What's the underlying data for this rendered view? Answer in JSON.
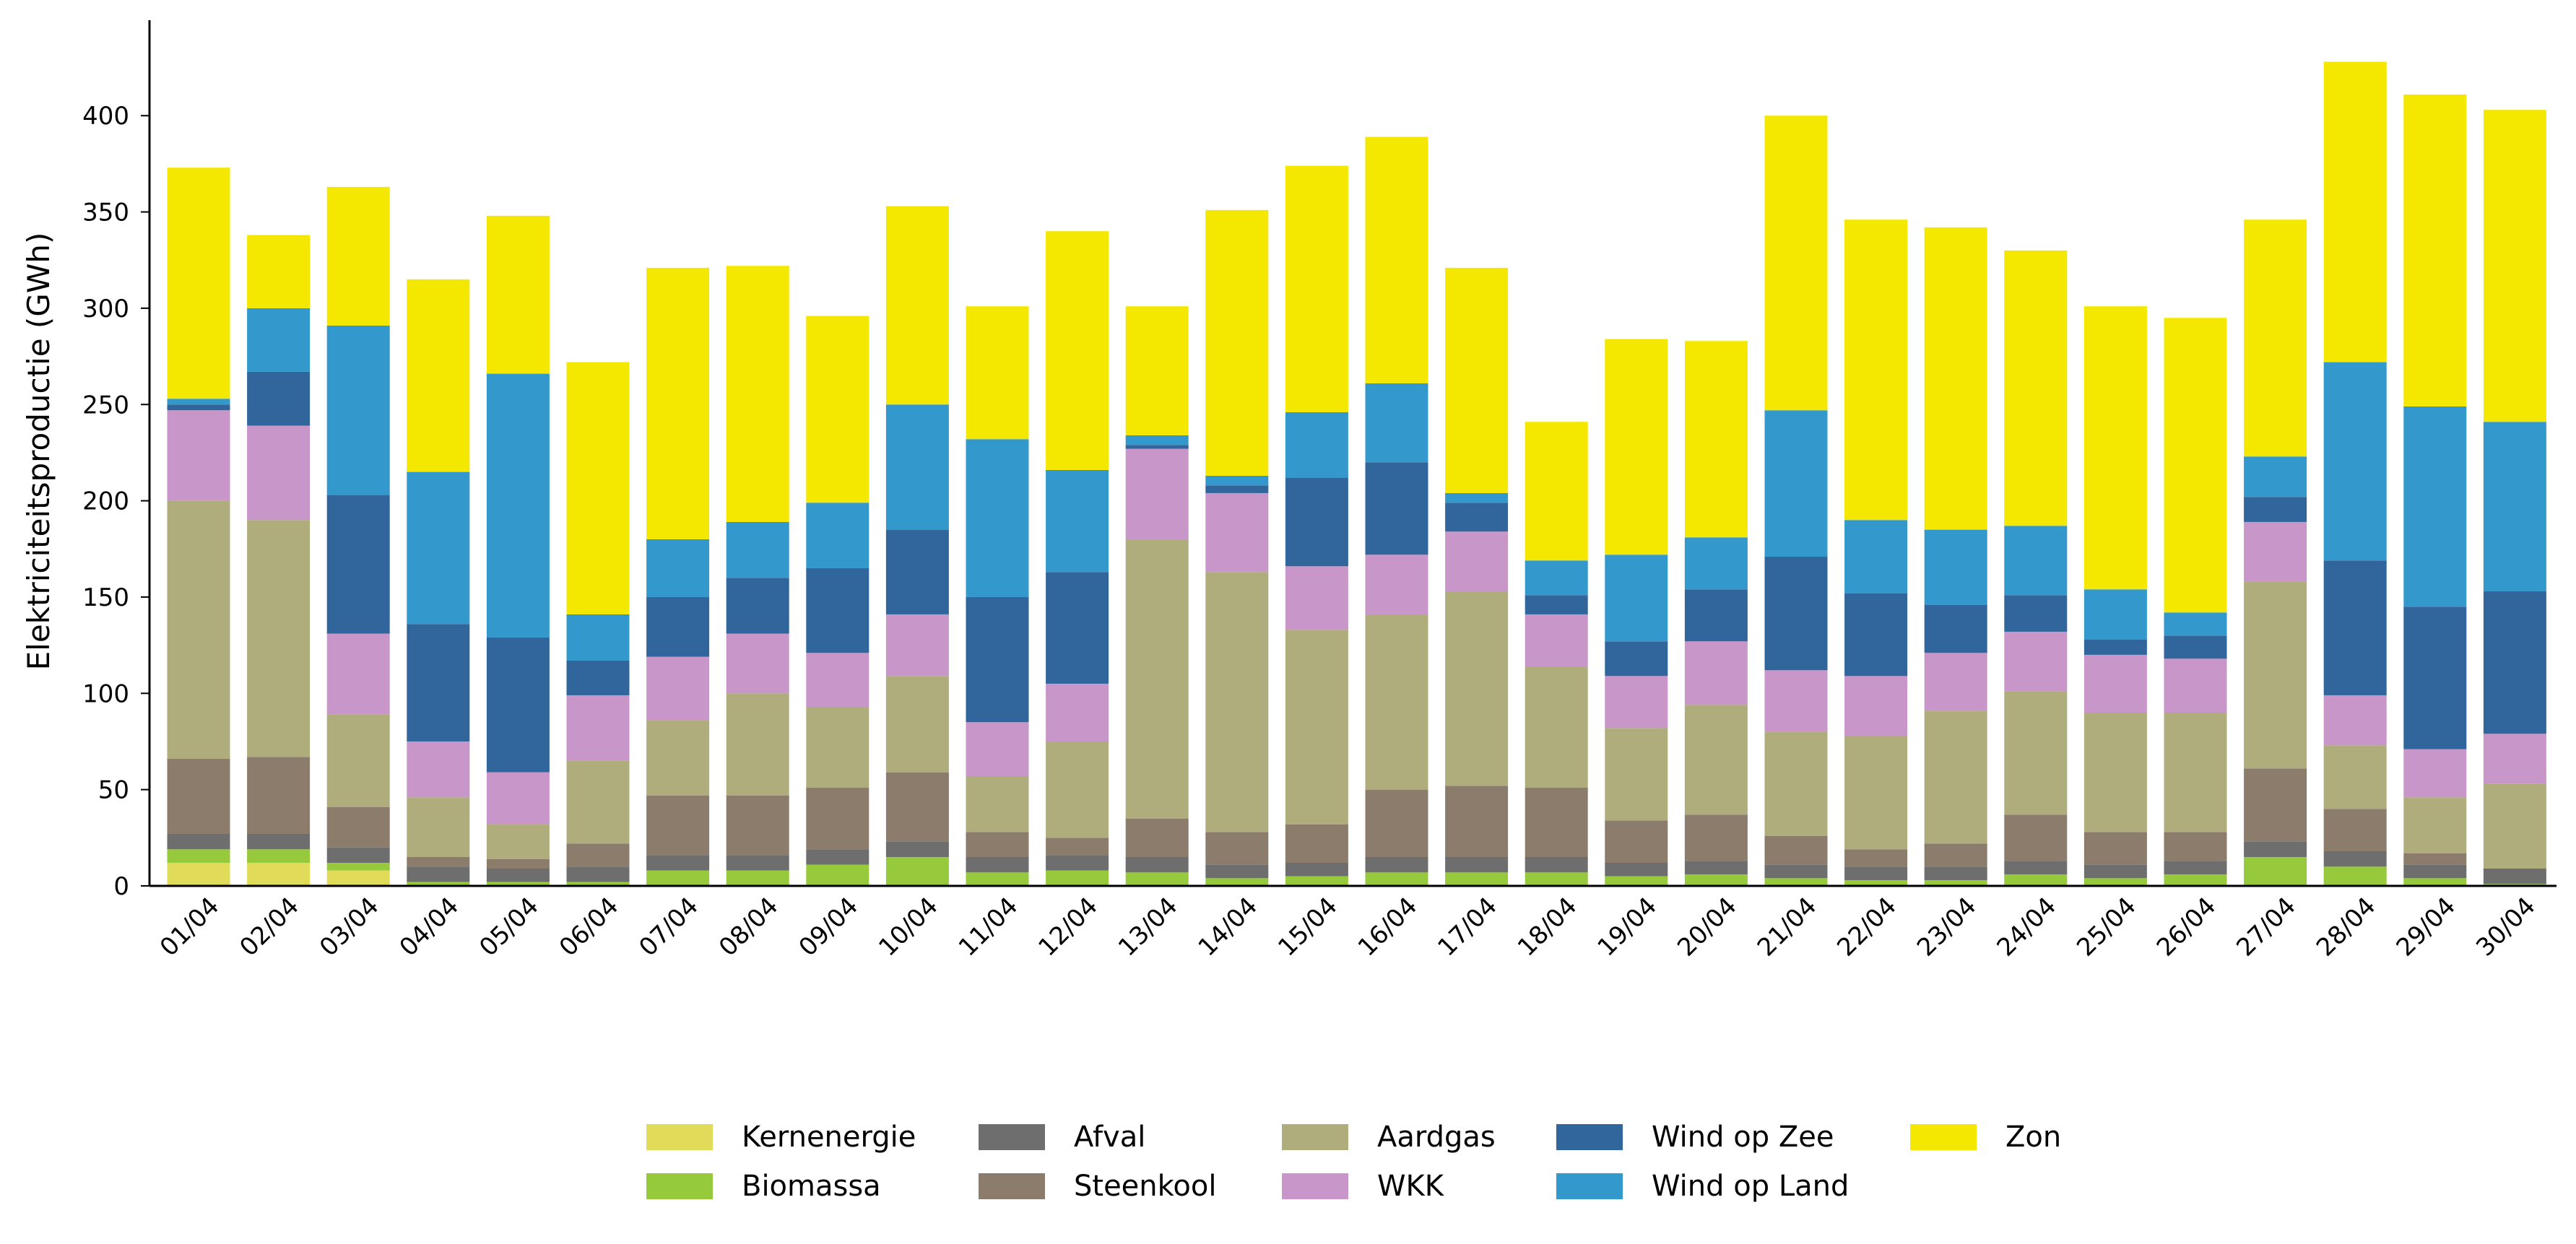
{
  "chart_data": {
    "type": "bar",
    "stacked": true,
    "title": "",
    "xlabel": "",
    "ylabel": "Elektriciteitsproductie (GWh)",
    "ylim": [
      0,
      450
    ],
    "yticks": [
      0,
      50,
      100,
      150,
      200,
      250,
      300,
      350,
      400
    ],
    "grid": false,
    "legend_position": "bottom",
    "categories": [
      "01/04",
      "02/04",
      "03/04",
      "04/04",
      "05/04",
      "06/04",
      "07/04",
      "08/04",
      "09/04",
      "10/04",
      "11/04",
      "12/04",
      "13/04",
      "14/04",
      "15/04",
      "16/04",
      "17/04",
      "18/04",
      "19/04",
      "20/04",
      "21/04",
      "22/04",
      "23/04",
      "24/04",
      "25/04",
      "26/04",
      "27/04",
      "28/04",
      "29/04",
      "30/04"
    ],
    "series": [
      {
        "name": "Kernenergie",
        "color": "#e0dc5a",
        "values": [
          12,
          12,
          8,
          0,
          0,
          0,
          0,
          0,
          0,
          0,
          0,
          0,
          0,
          0,
          0,
          0,
          0,
          0,
          0,
          0,
          0,
          0,
          0,
          0,
          0,
          0,
          0,
          0,
          0,
          0
        ]
      },
      {
        "name": "Biomassa",
        "color": "#97c93c",
        "values": [
          7,
          7,
          4,
          2,
          2,
          2,
          8,
          8,
          11,
          15,
          7,
          8,
          7,
          4,
          5,
          7,
          7,
          7,
          5,
          6,
          4,
          3,
          3,
          6,
          4,
          6,
          15,
          10,
          4,
          1
        ]
      },
      {
        "name": "Afval",
        "color": "#6e6e6e",
        "values": [
          8,
          8,
          8,
          8,
          7,
          8,
          8,
          8,
          8,
          8,
          8,
          8,
          8,
          7,
          7,
          8,
          8,
          8,
          7,
          7,
          7,
          7,
          7,
          7,
          7,
          7,
          8,
          8,
          7,
          8
        ]
      },
      {
        "name": "Steenkool",
        "color": "#8c7c6b",
        "values": [
          39,
          40,
          21,
          5,
          5,
          12,
          31,
          31,
          32,
          36,
          13,
          9,
          20,
          17,
          20,
          35,
          37,
          36,
          22,
          24,
          15,
          9,
          12,
          24,
          17,
          15,
          38,
          22,
          6,
          0
        ]
      },
      {
        "name": "Aardgas",
        "color": "#b0ad7d",
        "values": [
          134,
          123,
          48,
          31,
          18,
          43,
          39,
          53,
          42,
          50,
          29,
          50,
          145,
          135,
          101,
          91,
          101,
          63,
          48,
          57,
          54,
          59,
          69,
          64,
          62,
          62,
          97,
          33,
          29,
          44
        ]
      },
      {
        "name": "WKK",
        "color": "#c896c8",
        "values": [
          47,
          49,
          42,
          29,
          27,
          34,
          33,
          31,
          28,
          32,
          28,
          30,
          47,
          41,
          33,
          31,
          31,
          27,
          27,
          33,
          32,
          31,
          30,
          31,
          30,
          28,
          31,
          26,
          25,
          26
        ]
      },
      {
        "name": "Wind op Zee",
        "color": "#31669c",
        "values": [
          3,
          28,
          72,
          61,
          70,
          18,
          31,
          29,
          44,
          44,
          65,
          58,
          2,
          4,
          46,
          48,
          15,
          10,
          18,
          27,
          59,
          43,
          25,
          19,
          8,
          12,
          13,
          70,
          74,
          74
        ]
      },
      {
        "name": "Wind op Land",
        "color": "#3399cc",
        "values": [
          3,
          33,
          88,
          79,
          137,
          24,
          30,
          29,
          34,
          65,
          82,
          53,
          5,
          5,
          34,
          41,
          5,
          18,
          45,
          27,
          76,
          38,
          39,
          36,
          26,
          12,
          21,
          103,
          104,
          88
        ]
      },
      {
        "name": "Zon",
        "color": "#f5e800",
        "values": [
          120,
          38,
          72,
          100,
          82,
          131,
          141,
          133,
          97,
          103,
          69,
          124,
          67,
          138,
          128,
          128,
          117,
          72,
          112,
          102,
          153,
          156,
          157,
          143,
          147,
          153,
          123,
          156,
          162,
          162
        ]
      }
    ]
  }
}
